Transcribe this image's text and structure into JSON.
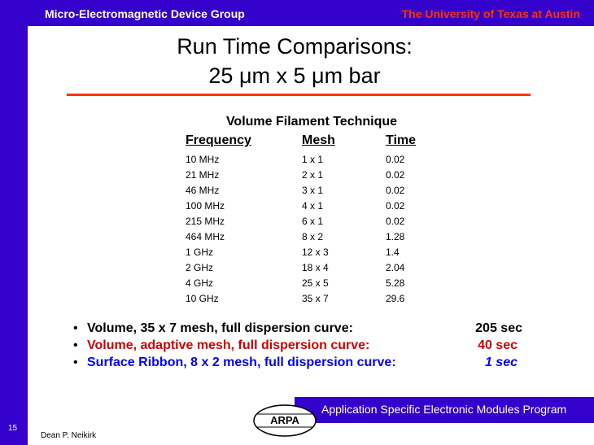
{
  "header": {
    "left": "Micro-Electromagnetic Device Group",
    "right": "The University of Texas at Austin"
  },
  "title": {
    "line1": "Run Time Comparisons:",
    "line2": "25 μm x 5 μm bar"
  },
  "table": {
    "caption": "Volume Filament Technique",
    "columns": [
      "Frequency",
      "Mesh",
      "Time"
    ],
    "rows": [
      [
        "10 MHz",
        "1 x 1",
        "0.02"
      ],
      [
        "21 MHz",
        "2 x 1",
        "0.02"
      ],
      [
        "46 MHz",
        "3 x 1",
        "0.02"
      ],
      [
        "100 MHz",
        "4 x 1",
        "0.02"
      ],
      [
        "215 MHz",
        "6 x 1",
        "0.02"
      ],
      [
        "464 MHz",
        "8 x 2",
        "1.28"
      ],
      [
        "1 GHz",
        "12 x 3",
        "1.4"
      ],
      [
        "2 GHz",
        "18 x 4",
        "2.04"
      ],
      [
        "4 GHz",
        "25 x 5",
        "5.28"
      ],
      [
        "10 GHz",
        "35 x 7",
        "29.6"
      ]
    ]
  },
  "bullets": [
    {
      "text": "Volume, 35 x 7 mesh, full dispersion curve:",
      "time": "205 sec"
    },
    {
      "text": "Volume, adaptive mesh, full dispersion curve:",
      "time": "40 sec"
    },
    {
      "text": "Surface Ribbon, 8 x 2 mesh, full dispersion curve:",
      "time": "1 sec"
    }
  ],
  "footer": {
    "program": "Application Specific Electronic Modules Program",
    "page": "15",
    "author": "Dean P. Neikirk",
    "logo": "ARPA"
  }
}
